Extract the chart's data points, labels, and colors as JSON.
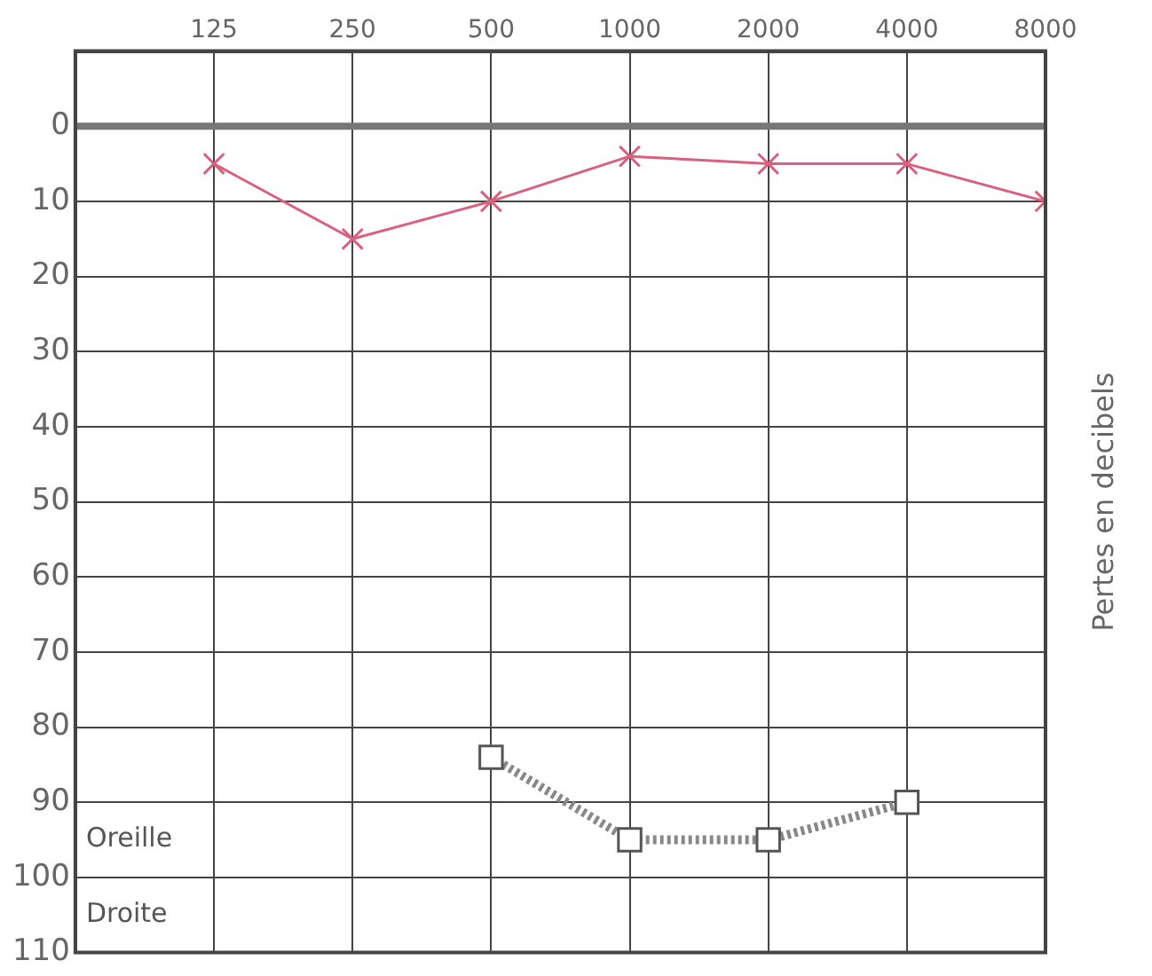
{
  "chart_data": {
    "type": "line",
    "ylabel": "Pertes en decibels",
    "annotations": [
      "Oreille",
      "Droite"
    ],
    "x": [
      125,
      250,
      500,
      1000,
      2000,
      4000,
      8000
    ],
    "series": [
      {
        "color": "#d9607e",
        "values": [
          5,
          15,
          10,
          4,
          5,
          5,
          10
        ],
        "marker": "cross",
        "line_style": "solid"
      },
      {
        "color": "#888888",
        "x": [
          500,
          1000,
          2000,
          4000
        ],
        "values": [
          84,
          95,
          95,
          90
        ],
        "marker": "square",
        "line_style": "dotted"
      }
    ],
    "log": "x",
    "xlim": [
      62.5,
      8000
    ],
    "xticks": [
      125,
      250,
      500,
      1000,
      2000,
      4000,
      8000
    ],
    "ylim": [
      110,
      -10
    ],
    "yticks": [
      0,
      10,
      20,
      30,
      40,
      50,
      60,
      70,
      80,
      90,
      100,
      110
    ],
    "ref_lines": [
      {
        "axis": "y",
        "value": 0,
        "color": "#777777"
      }
    ],
    "grid": true,
    "legend": false
  }
}
